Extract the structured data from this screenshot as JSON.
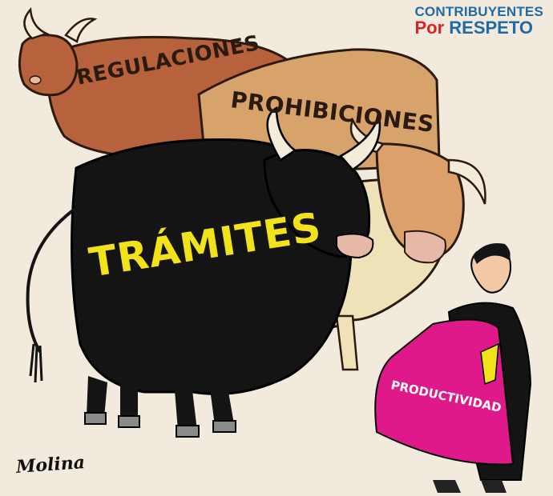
{
  "brand": {
    "line1": "CONTRIBUYENTES",
    "line2_part1": "Por",
    "line2_part2": "RESPETO"
  },
  "labels": {
    "bull_regulaciones": "REGULACIONES",
    "bull_prohibiciones": "PROHIBICIONES",
    "bull_tramites": "TRÁMITES",
    "cape": "PRODUCTIVIDAD"
  },
  "signature": "Molina",
  "colors": {
    "background": "#f2eadc",
    "bull_regulaciones": "#b8623d",
    "bull_prohibiciones": "#d7a36b",
    "bull_tramites": "#141414",
    "bull_cream": "#efe2b8",
    "cape": "#e0198a",
    "label_tramites": "#f1e21a",
    "brand_blue": "#1f6aa8",
    "brand_red": "#d6242a"
  }
}
